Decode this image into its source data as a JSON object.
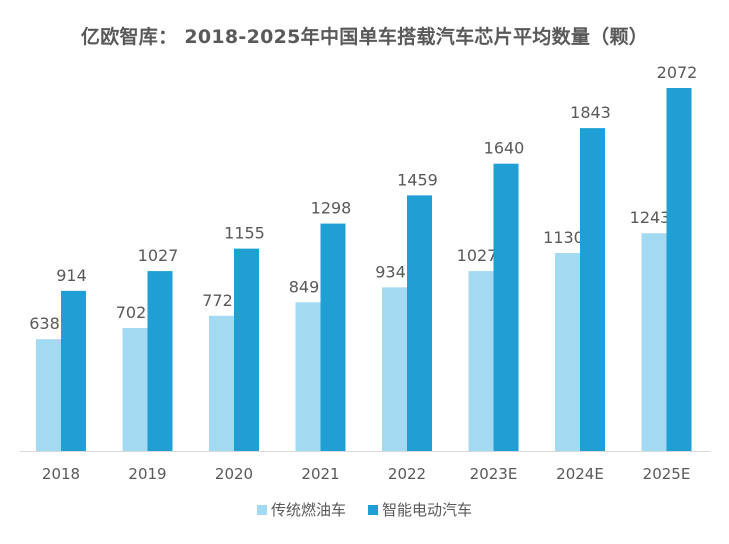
{
  "chart_data": {
    "type": "bar",
    "title": "亿欧智库： 2018-2025年中国单车搭载汽车芯片平均数量（颗）",
    "xlabel": "",
    "ylabel": "",
    "categories": [
      "2018",
      "2019",
      "2020",
      "2021",
      "2022",
      "2023E",
      "2024E",
      "2025E"
    ],
    "series": [
      {
        "name": "传统燃油车",
        "color": "#a3d9f1",
        "values": [
          638,
          702,
          772,
          849,
          934,
          1027,
          1130,
          1243
        ]
      },
      {
        "name": "智能电动汽车",
        "color": "#1f9fd4",
        "values": [
          914,
          1027,
          1155,
          1298,
          1459,
          1640,
          1843,
          2072
        ]
      }
    ],
    "ylim": [
      0,
      2072
    ],
    "grid": false,
    "legend_position": "bottom-center",
    "data_labels": true,
    "axis_color": "#d9d9d9",
    "label_color": "#595959"
  }
}
